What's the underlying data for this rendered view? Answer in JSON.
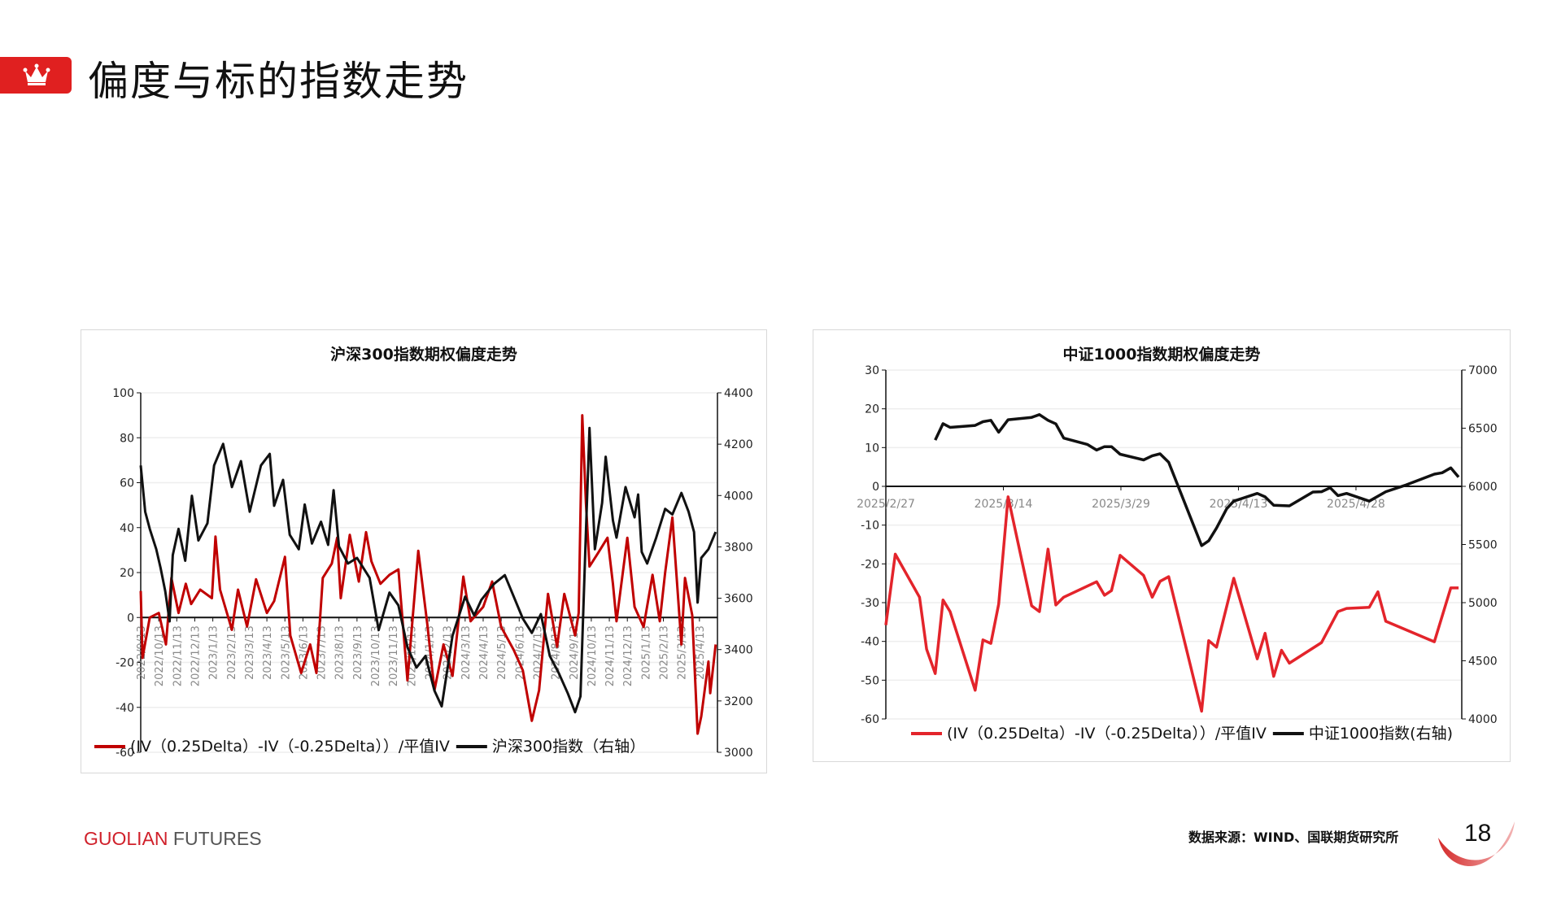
{
  "header": {
    "title": "偏度与标的指数走势",
    "icon": "crown-icon"
  },
  "footer": {
    "brand_red": "GUOLIAN",
    "brand_gray": "FUTURES",
    "source": "数据来源：WIND、国联期货研究所",
    "page_number": "18"
  },
  "colors": {
    "accent": "#e02020",
    "red_series": "#c00000",
    "red_series2": "#e3242b",
    "black_series": "#111111"
  },
  "chart_data": [
    {
      "type": "line",
      "title": "沪深300指数期权偏度走势",
      "x_unit": "months since 2022/9/13",
      "x_tick_labels": [
        "2022/9/13",
        "2022/10/13",
        "2022/11/13",
        "2022/12/13",
        "2023/1/13",
        "2023/2/13",
        "2023/3/13",
        "2023/4/13",
        "2023/5/13",
        "2023/6/13",
        "2023/7/13",
        "2023/8/13",
        "2023/9/13",
        "2023/10/13",
        "2023/11/13",
        "2023/12/13",
        "2024/1/13",
        "2024/2/13",
        "2024/3/13",
        "2024/4/13",
        "2024/5/13",
        "2024/6/13",
        "2024/7/13",
        "2024/8/13",
        "2024/9/13",
        "2024/10/13",
        "2024/11/13",
        "2024/12/13",
        "2025/1/13",
        "2025/2/13",
        "2025/3/13",
        "2025/4/13"
      ],
      "xlim": [
        0,
        32
      ],
      "ylim": [
        -60,
        100
      ],
      "y_ticks": [
        "100",
        "80",
        "60",
        "40",
        "20",
        "0",
        "-20",
        "-40",
        "-60"
      ],
      "y2lim": [
        3000,
        4400
      ],
      "y2_ticks": [
        "4400",
        "4200",
        "4000",
        "3800",
        "3600",
        "3400",
        "3200",
        "3000"
      ],
      "legend": [
        "(IV（0.25Delta）-IV（-0.25Delta））/平值IV",
        "沪深300指数（右轴）"
      ],
      "series": [
        {
          "name": "(IV（0.25Delta）-IV（-0.25Delta））/平值IV",
          "axis": "left",
          "color": "#c00000",
          "points": [
            [
              0,
              11.8
            ],
            [
              0.1,
              -18
            ],
            [
              0.5,
              0
            ],
            [
              1,
              2
            ],
            [
              1.4,
              -12
            ],
            [
              1.7,
              17.6
            ],
            [
              2.1,
              2
            ],
            [
              2.5,
              15
            ],
            [
              2.8,
              6
            ],
            [
              3.3,
              12.4
            ],
            [
              3.95,
              8.6
            ],
            [
              4.15,
              36
            ],
            [
              4.4,
              12.4
            ],
            [
              5.06,
              -5.5
            ],
            [
              5.4,
              12.4
            ],
            [
              5.9,
              -4
            ],
            [
              6.4,
              17
            ],
            [
              7,
              2
            ],
            [
              7.4,
              7.3
            ],
            [
              8,
              27
            ],
            [
              8.3,
              -8
            ],
            [
              8.9,
              -24.7
            ],
            [
              9.4,
              -12
            ],
            [
              9.75,
              -24.7
            ],
            [
              10.1,
              17.6
            ],
            [
              10.6,
              24
            ],
            [
              10.9,
              35.5
            ],
            [
              11.1,
              8.6
            ],
            [
              11.6,
              36.8
            ],
            [
              12.1,
              16
            ],
            [
              12.5,
              38
            ],
            [
              12.8,
              25
            ],
            [
              13.3,
              15
            ],
            [
              13.8,
              19
            ],
            [
              14.3,
              21.4
            ],
            [
              14.8,
              -28
            ],
            [
              15.4,
              29.7
            ],
            [
              15.9,
              -3
            ],
            [
              16.3,
              -32.4
            ],
            [
              16.8,
              -12
            ],
            [
              17.3,
              -26
            ],
            [
              17.9,
              18.2
            ],
            [
              18.3,
              -1.7
            ],
            [
              19,
              4.7
            ],
            [
              19.5,
              16
            ],
            [
              20,
              -4.2
            ],
            [
              20.7,
              -14.5
            ],
            [
              21.2,
              -23.5
            ],
            [
              21.7,
              -46
            ],
            [
              22.1,
              -32.4
            ],
            [
              22.6,
              10.5
            ],
            [
              23.1,
              -13
            ],
            [
              23.5,
              10.5
            ],
            [
              24.1,
              -8
            ],
            [
              24.3,
              2
            ],
            [
              24.5,
              90
            ],
            [
              24.7,
              51
            ],
            [
              24.9,
              22.7
            ],
            [
              25.4,
              29
            ],
            [
              25.9,
              35.5
            ],
            [
              26.2,
              15
            ],
            [
              26.4,
              -1.7
            ],
            [
              27,
              35.5
            ],
            [
              27.4,
              4.7
            ],
            [
              27.9,
              -4.2
            ],
            [
              28.4,
              19
            ],
            [
              28.8,
              -1.7
            ],
            [
              29.1,
              20
            ],
            [
              29.5,
              44.5
            ],
            [
              30,
              -12
            ],
            [
              30.2,
              17.6
            ],
            [
              30.6,
              1
            ],
            [
              30.9,
              -51.7
            ],
            [
              31.1,
              -44
            ],
            [
              31.5,
              -19.6
            ],
            [
              31.6,
              -33.7
            ],
            [
              31.9,
              -12
            ]
          ]
        },
        {
          "name": "沪深300指数（右轴）",
          "axis": "right",
          "color": "#111111",
          "points": [
            [
              0,
              4117
            ],
            [
              0.25,
              3937
            ],
            [
              0.5,
              3870
            ],
            [
              0.86,
              3791
            ],
            [
              1.1,
              3718
            ],
            [
              1.36,
              3628
            ],
            [
              1.6,
              3510
            ],
            [
              1.78,
              3768
            ],
            [
              2.1,
              3870
            ],
            [
              2.47,
              3746
            ],
            [
              2.84,
              3999
            ],
            [
              3.2,
              3825
            ],
            [
              3.7,
              3892
            ],
            [
              4.07,
              4117
            ],
            [
              4.57,
              4201
            ],
            [
              5.06,
              4033
            ],
            [
              5.56,
              4134
            ],
            [
              6.05,
              3937
            ],
            [
              6.67,
              4117
            ],
            [
              7.16,
              4162
            ],
            [
              7.4,
              3960
            ],
            [
              7.9,
              4061
            ],
            [
              8.27,
              3847
            ],
            [
              8.77,
              3791
            ],
            [
              9.1,
              3965
            ],
            [
              9.5,
              3813
            ],
            [
              10,
              3898
            ],
            [
              10.4,
              3808
            ],
            [
              10.7,
              4021
            ],
            [
              11,
              3802
            ],
            [
              11.5,
              3735
            ],
            [
              12,
              3757
            ],
            [
              12.7,
              3679
            ],
            [
              13.2,
              3476
            ],
            [
              13.8,
              3622
            ],
            [
              14.3,
              3572
            ],
            [
              14.8,
              3409
            ],
            [
              15.3,
              3330
            ],
            [
              15.8,
              3375
            ],
            [
              16.3,
              3240
            ],
            [
              16.7,
              3179
            ],
            [
              17.3,
              3454
            ],
            [
              18,
              3606
            ],
            [
              18.5,
              3533
            ],
            [
              18.9,
              3594
            ],
            [
              19.6,
              3656
            ],
            [
              20.2,
              3690
            ],
            [
              20.7,
              3606
            ],
            [
              21.2,
              3521
            ],
            [
              21.7,
              3465
            ],
            [
              22.2,
              3538
            ],
            [
              22.7,
              3375
            ],
            [
              23.2,
              3308
            ],
            [
              23.7,
              3229
            ],
            [
              24.1,
              3156
            ],
            [
              24.4,
              3218
            ],
            [
              24.7,
              3858
            ],
            [
              24.9,
              4263
            ],
            [
              25.2,
              3791
            ],
            [
              25.6,
              3971
            ],
            [
              25.8,
              4151
            ],
            [
              26.2,
              3903
            ],
            [
              26.4,
              3836
            ],
            [
              26.9,
              4033
            ],
            [
              27.4,
              3915
            ],
            [
              27.6,
              4004
            ],
            [
              27.8,
              3780
            ],
            [
              28.1,
              3735
            ],
            [
              28.6,
              3836
            ],
            [
              29.1,
              3948
            ],
            [
              29.5,
              3926
            ],
            [
              30,
              4010
            ],
            [
              30.4,
              3937
            ],
            [
              30.7,
              3858
            ],
            [
              30.9,
              3583
            ],
            [
              31.1,
              3757
            ],
            [
              31.5,
              3791
            ],
            [
              31.9,
              3858
            ]
          ]
        }
      ]
    },
    {
      "type": "line",
      "title": "中证1000指数期权偏度走势",
      "x_unit": "days since 2025/2/27",
      "x_tick_labels": [
        "2025/2/27",
        "2025/3/14",
        "2025/3/29",
        "2025/4/13",
        "2025/4/28"
      ],
      "x_tick_values": [
        0,
        15,
        30,
        45,
        60
      ],
      "xlim": [
        0,
        73.5
      ],
      "ylim": [
        -60,
        30
      ],
      "y_ticks": [
        "30",
        "20",
        "10",
        "0",
        "-10",
        "-20",
        "-30",
        "-40",
        "-50",
        "-60"
      ],
      "y2lim": [
        4000,
        7000
      ],
      "y2_ticks": [
        "7000",
        "6500",
        "6000",
        "5500",
        "5000",
        "4500",
        "4000"
      ],
      "legend": [
        "(IV（0.25Delta）-IV（-0.25Delta））/平值IV",
        "中证1000指数(右轴)"
      ],
      "series": [
        {
          "name": "(IV（0.25Delta）-IV（-0.25Delta））/平值IV",
          "axis": "left",
          "color": "#e3242b",
          "points": [
            [
              0,
              -35.8
            ],
            [
              1.2,
              -17.5
            ],
            [
              4.3,
              -28.6
            ],
            [
              5.2,
              -42
            ],
            [
              6.3,
              -48.3
            ],
            [
              7.3,
              -29.3
            ],
            [
              8.2,
              -32.3
            ],
            [
              11.4,
              -52.6
            ],
            [
              12.4,
              -39.6
            ],
            [
              13.4,
              -40.5
            ],
            [
              14.4,
              -30.4
            ],
            [
              15.6,
              -2.7
            ],
            [
              18.6,
              -30.8
            ],
            [
              19.6,
              -32.3
            ],
            [
              20.7,
              -16.2
            ],
            [
              21.7,
              -30.6
            ],
            [
              22.7,
              -28.6
            ],
            [
              26.9,
              -24.6
            ],
            [
              27.9,
              -28.1
            ],
            [
              28.8,
              -26.9
            ],
            [
              29.9,
              -17.8
            ],
            [
              32.9,
              -23
            ],
            [
              34,
              -28.6
            ],
            [
              35,
              -24.5
            ],
            [
              36.1,
              -23.3
            ],
            [
              40.3,
              -58
            ],
            [
              41.2,
              -39.8
            ],
            [
              42.2,
              -41.5
            ],
            [
              44.4,
              -23.7
            ],
            [
              47.4,
              -44.5
            ],
            [
              48.4,
              -37.9
            ],
            [
              49.5,
              -49
            ],
            [
              50.5,
              -42.3
            ],
            [
              51.5,
              -45.6
            ],
            [
              55.6,
              -40.3
            ],
            [
              57.7,
              -32.3
            ],
            [
              58.8,
              -31.5
            ],
            [
              61.7,
              -31.2
            ],
            [
              62.8,
              -27.2
            ],
            [
              63.8,
              -34.8
            ],
            [
              70,
              -40.1
            ],
            [
              72.1,
              -26.2
            ],
            [
              73.1,
              -26.2
            ]
          ]
        },
        {
          "name": "中证1000指数(右轴)",
          "axis": "right",
          "color": "#111111",
          "points": [
            [
              6.3,
              6398
            ],
            [
              7.3,
              6539
            ],
            [
              8.2,
              6507
            ],
            [
              11.4,
              6524
            ],
            [
              12.4,
              6556
            ],
            [
              13.4,
              6568
            ],
            [
              14.4,
              6466
            ],
            [
              15.6,
              6573
            ],
            [
              18.6,
              6593
            ],
            [
              19.6,
              6617
            ],
            [
              20.7,
              6568
            ],
            [
              21.7,
              6537
            ],
            [
              22.7,
              6415
            ],
            [
              25.7,
              6361
            ],
            [
              26.9,
              6312
            ],
            [
              27.9,
              6341
            ],
            [
              28.8,
              6341
            ],
            [
              29.9,
              6276
            ],
            [
              32.9,
              6227
            ],
            [
              34,
              6263
            ],
            [
              35,
              6280
            ],
            [
              36.1,
              6207
            ],
            [
              40.3,
              5490
            ],
            [
              41.2,
              5532
            ],
            [
              42.2,
              5641
            ],
            [
              43.5,
              5807
            ],
            [
              44.4,
              5873
            ],
            [
              47.4,
              5939
            ],
            [
              48.4,
              5910
            ],
            [
              49.5,
              5837
            ],
            [
              51.5,
              5832
            ],
            [
              54.5,
              5951
            ],
            [
              55.6,
              5954
            ],
            [
              56.7,
              5988
            ],
            [
              57.7,
              5920
            ],
            [
              58.8,
              5939
            ],
            [
              61.7,
              5873
            ],
            [
              63.8,
              5954
            ],
            [
              66.4,
              6012
            ],
            [
              70,
              6105
            ],
            [
              71,
              6117
            ],
            [
              72.1,
              6159
            ],
            [
              73.1,
              6080
            ]
          ]
        }
      ]
    }
  ]
}
